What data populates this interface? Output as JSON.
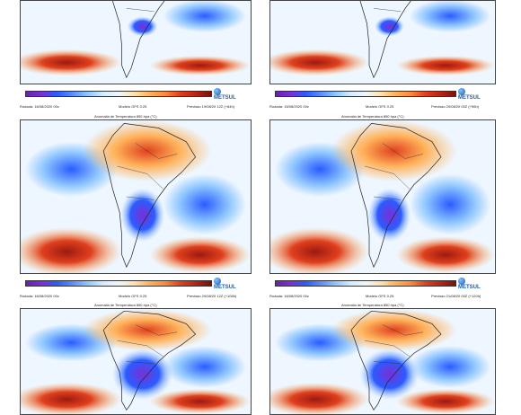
{
  "panels": [
    {
      "id": "p1",
      "title": "",
      "info": {
        "left": "Rodada: 16/08/2020 00z",
        "center": "Modelo GFS 0.25",
        "right": "Previsao 19/08/20 12Z (+84h)"
      },
      "cold_core": "small"
    },
    {
      "id": "p2",
      "title": "",
      "info": {
        "left": "Rodada: 16/08/2020 00z",
        "center": "Modelo GFS 0.25",
        "right": "Previsao 20/08/20 00Z (+96h)"
      },
      "cold_core": "small"
    },
    {
      "id": "p3",
      "title": "Anomalia de Temperatura 850 hpa (°C)",
      "info": {
        "left": "Rodada: 16/08/2020 00z",
        "center": "Modelo GFS 0.25",
        "right": "Previsao 20/08/20 12Z (+108h)"
      },
      "cold_core": "medium"
    },
    {
      "id": "p4",
      "title": "Anomalia de Temperatura 850 hpa (°C)",
      "info": {
        "left": "Rodada: 16/08/2020 00z",
        "center": "Modelo GFS 0.25",
        "right": "Previsao 21/08/20 00Z (+120h)"
      },
      "cold_core": "medium"
    },
    {
      "id": "p5",
      "title": "Anomalia de Temperatura 850 hpa (°C)",
      "info": {
        "left": "",
        "center": "",
        "right": ""
      },
      "cold_core": "large"
    },
    {
      "id": "p6",
      "title": "Anomalia de Temperatura 850 hpa (°C)",
      "info": {
        "left": "",
        "center": "",
        "right": ""
      },
      "cold_core": "large"
    }
  ],
  "logo_text": "METSUL",
  "colors": {
    "cold_deep": "#7a2fd6",
    "cold": "#2a5cff",
    "cool": "#8fc6ff",
    "neutral": "#eef6ff",
    "warm": "#ffb25a",
    "hot": "#e0401e",
    "very_hot": "#9c1a10"
  }
}
